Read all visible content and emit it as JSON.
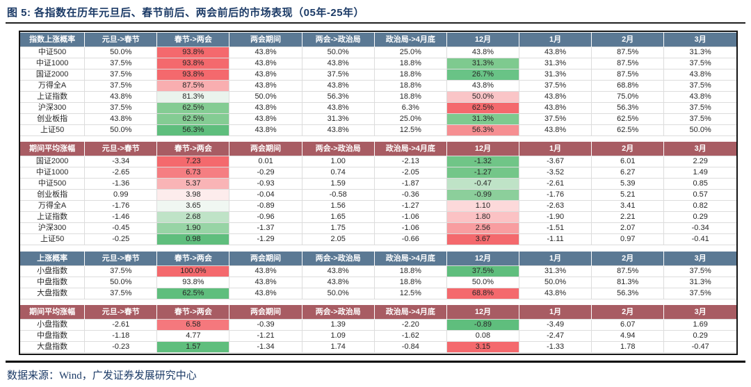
{
  "title": "图 5:  各指数在历年元旦后、春节前后、两会前后的市场表现（05年-25年）",
  "footer": {
    "source": "数据来源：Wind，广发证券发展研究中心"
  },
  "colors": {
    "blue_header": "#5b7994",
    "red_header": "#a85c63",
    "title_text": "#1b3a66"
  },
  "tables": [
    {
      "label_header": "指数上涨概率",
      "header_color": "blue_header",
      "columns": [
        "元旦->春节",
        "春节->两会",
        "两会期间",
        "两会->政治局",
        "政治局->4月底",
        "12月",
        "1月",
        "2月",
        "3月"
      ],
      "rows": [
        {
          "label": "中证500",
          "values": [
            "50.0%",
            "93.8%",
            "43.8%",
            "50.0%",
            "25.0%",
            "43.8%",
            "43.8%",
            "87.5%",
            "31.3%"
          ],
          "bg": [
            "",
            "#f4696d",
            "",
            "",
            "",
            "",
            "",
            "",
            ""
          ]
        },
        {
          "label": "中证1000",
          "values": [
            "37.5%",
            "93.8%",
            "43.8%",
            "43.8%",
            "18.8%",
            "31.3%",
            "31.3%",
            "87.5%",
            "37.5%"
          ],
          "bg": [
            "",
            "#f4696d",
            "",
            "",
            "",
            "#7eca8f",
            "",
            "",
            ""
          ]
        },
        {
          "label": "国证2000",
          "values": [
            "37.5%",
            "93.8%",
            "43.8%",
            "37.5%",
            "18.8%",
            "26.7%",
            "31.3%",
            "87.5%",
            "43.8%"
          ],
          "bg": [
            "",
            "#f4696d",
            "",
            "",
            "",
            "#69c386",
            "",
            "",
            ""
          ]
        },
        {
          "label": "万得全A",
          "values": [
            "37.5%",
            "87.5%",
            "43.8%",
            "43.8%",
            "18.8%",
            "43.8%",
            "37.5%",
            "68.8%",
            "37.5%"
          ],
          "bg": [
            "",
            "#f9aeb0",
            "",
            "",
            "",
            "",
            "",
            "",
            ""
          ]
        },
        {
          "label": "上证指数",
          "values": [
            "43.8%",
            "81.3%",
            "50.0%",
            "56.3%",
            "18.8%",
            "50.0%",
            "43.8%",
            "75.0%",
            "43.8%"
          ],
          "bg": [
            "",
            "#eaf4ed",
            "",
            "",
            "",
            "#fac5c7",
            "",
            "",
            ""
          ]
        },
        {
          "label": "沪深300",
          "values": [
            "37.5%",
            "62.5%",
            "43.8%",
            "43.8%",
            "6.3%",
            "62.5%",
            "43.8%",
            "56.3%",
            "37.5%"
          ],
          "bg": [
            "",
            "#84cc93",
            "",
            "",
            "",
            "#f4696d",
            "",
            "",
            ""
          ]
        },
        {
          "label": "创业板指",
          "values": [
            "43.8%",
            "62.5%",
            "43.8%",
            "31.3%",
            "25.0%",
            "31.3%",
            "37.5%",
            "62.5%",
            "37.5%"
          ],
          "bg": [
            "",
            "#84cc93",
            "",
            "",
            "",
            "#7eca8f",
            "",
            "",
            ""
          ]
        },
        {
          "label": "上证50",
          "values": [
            "50.0%",
            "56.3%",
            "43.8%",
            "43.8%",
            "12.5%",
            "56.3%",
            "43.8%",
            "62.5%",
            "50.0%"
          ],
          "bg": [
            "",
            "#5fbe7d",
            "",
            "",
            "",
            "#f68f92",
            "",
            "",
            ""
          ]
        }
      ]
    },
    {
      "label_header": "期间平均涨幅",
      "header_color": "red_header",
      "columns": [
        "元旦->春节",
        "春节->两会",
        "两会期间",
        "两会->政治局",
        "政治局->4月底",
        "12月",
        "1月",
        "2月",
        "3月"
      ],
      "rows": [
        {
          "label": "国证2000",
          "values": [
            "-3.34",
            "7.23",
            "0.01",
            "1.00",
            "-2.13",
            "-1.32",
            "-3.67",
            "6.01",
            "2.29"
          ],
          "bg": [
            "",
            "#f4696d",
            "",
            "",
            "",
            "#70c587",
            "",
            "",
            ""
          ]
        },
        {
          "label": "中证1000",
          "values": [
            "-2.65",
            "6.73",
            "-0.29",
            "0.74",
            "-2.05",
            "-1.27",
            "-3.52",
            "6.27",
            "1.49"
          ],
          "bg": [
            "",
            "#f57e82",
            "",
            "",
            "",
            "#74c689",
            "",
            "",
            ""
          ]
        },
        {
          "label": "中证500",
          "values": [
            "-1.36",
            "5.37",
            "-0.93",
            "1.59",
            "-1.87",
            "-0.47",
            "-2.61",
            "5.39",
            "0.85"
          ],
          "bg": [
            "",
            "#f9b4b6",
            "",
            "",
            "",
            "#bfe3c7",
            "",
            "",
            ""
          ]
        },
        {
          "label": "创业板指",
          "values": [
            "0.99",
            "3.98",
            "-0.04",
            "-0.58",
            "-0.36",
            "-0.99",
            "-1.76",
            "5.21",
            "0.57"
          ],
          "bg": [
            "",
            "#fdecec",
            "",
            "",
            "",
            "#8ccf9b",
            "",
            "",
            ""
          ]
        },
        {
          "label": "万得全A",
          "values": [
            "-1.76",
            "3.65",
            "-0.89",
            "1.56",
            "-1.27",
            "1.10",
            "-2.63",
            "3.41",
            "0.82"
          ],
          "bg": [
            "",
            "#f0f7f2",
            "",
            "",
            "",
            "#fcd9da",
            "",
            "",
            ""
          ]
        },
        {
          "label": "上证指数",
          "values": [
            "-1.46",
            "2.68",
            "-0.96",
            "1.65",
            "-1.06",
            "1.80",
            "-1.90",
            "2.21",
            "0.29"
          ],
          "bg": [
            "",
            "#bfe3c7",
            "",
            "",
            "",
            "#fbc2c4",
            "",
            "",
            ""
          ]
        },
        {
          "label": "沪深300",
          "values": [
            "-0.45",
            "1.90",
            "-1.37",
            "1.75",
            "-1.06",
            "2.56",
            "-1.51",
            "2.07",
            "-0.34"
          ],
          "bg": [
            "",
            "#97d4a5",
            "",
            "",
            "",
            "#f89da0",
            "",
            "",
            ""
          ]
        },
        {
          "label": "上证50",
          "values": [
            "-0.25",
            "0.98",
            "-1.29",
            "2.05",
            "-0.66",
            "3.67",
            "-1.11",
            "0.97",
            "-0.41"
          ],
          "bg": [
            "",
            "#5fbe7d",
            "",
            "",
            "",
            "#f4696d",
            "",
            "",
            ""
          ]
        }
      ]
    },
    {
      "label_header": "上涨概率",
      "header_color": "blue_header",
      "columns": [
        "元旦->春节",
        "春节->两会",
        "两会期间",
        "两会->政治局",
        "政治局->4月底",
        "12月",
        "1月",
        "2月",
        "3月"
      ],
      "rows": [
        {
          "label": "小盘指数",
          "values": [
            "37.5%",
            "100.0%",
            "43.8%",
            "43.8%",
            "18.8%",
            "37.5%",
            "31.3%",
            "87.5%",
            "37.5%"
          ],
          "bg": [
            "",
            "#f4696d",
            "",
            "",
            "",
            "#5fbe7d",
            "",
            "",
            ""
          ]
        },
        {
          "label": "中盘指数",
          "values": [
            "50.0%",
            "93.8%",
            "43.8%",
            "43.8%",
            "18.8%",
            "50.0%",
            "50.0%",
            "81.3%",
            "31.3%"
          ],
          "bg": [
            "",
            "",
            "",
            "",
            "",
            "",
            "",
            "",
            ""
          ]
        },
        {
          "label": "大盘指数",
          "values": [
            "37.5%",
            "62.5%",
            "43.8%",
            "50.0%",
            "12.5%",
            "68.8%",
            "43.8%",
            "56.3%",
            "37.5%"
          ],
          "bg": [
            "",
            "#5fbe7d",
            "",
            "",
            "",
            "#f4696d",
            "",
            "",
            ""
          ]
        }
      ]
    },
    {
      "label_header": "期间平均涨幅",
      "header_color": "red_header",
      "columns": [
        "元旦->春节",
        "春节->两会",
        "两会期间",
        "两会->政治局",
        "政治局->4月底",
        "12月",
        "1月",
        "2月",
        "3月"
      ],
      "rows": [
        {
          "label": "小盘指数",
          "values": [
            "-2.61",
            "6.58",
            "-0.39",
            "1.39",
            "-2.20",
            "-0.89",
            "-3.49",
            "6.07",
            "1.69"
          ],
          "bg": [
            "",
            "#f5787d",
            "",
            "",
            "",
            "#5fbe7d",
            "",
            "",
            ""
          ]
        },
        {
          "label": "中盘指数",
          "values": [
            "-1.18",
            "4.77",
            "-1.21",
            "1.09",
            "-1.62",
            "0.08",
            "-2.47",
            "4.94",
            "0.29"
          ],
          "bg": [
            "",
            "",
            "",
            "",
            "",
            "",
            "",
            "",
            ""
          ]
        },
        {
          "label": "大盘指数",
          "values": [
            "-0.23",
            "1.57",
            "-1.34",
            "1.74",
            "-0.84",
            "3.15",
            "-1.33",
            "1.78",
            "-0.47"
          ],
          "bg": [
            "",
            "#5fbe7d",
            "",
            "",
            "",
            "#f4696d",
            "",
            "",
            ""
          ]
        }
      ]
    }
  ]
}
